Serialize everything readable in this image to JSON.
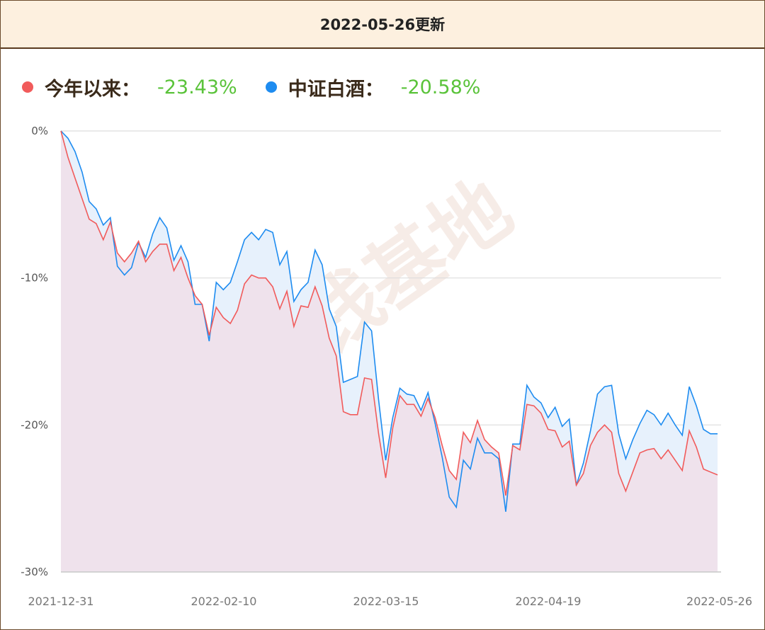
{
  "header": {
    "title": "2022-05-26更新"
  },
  "legend": [
    {
      "label": "今年以来：",
      "value": "-23.43%",
      "color": "#f15b5b"
    },
    {
      "label": "中证白酒：",
      "value": "-20.58%",
      "color": "#1e8cf0"
    }
  ],
  "watermark": "搞钱基地",
  "colors": {
    "value_text": "#5ac33a",
    "grid": "#dddddd",
    "area_red": "#efe2ec",
    "area_blue": "#e7f1fc"
  },
  "chart_data": {
    "type": "line",
    "ylim": [
      -30,
      0
    ],
    "y_ticks": [
      "0%",
      "-10%",
      "-20%",
      "-30%"
    ],
    "x_tick_labels": [
      "2021-12-31",
      "2022-02-10",
      "2022-03-15",
      "2022-04-19",
      "2022-05-26"
    ],
    "series": [
      {
        "name": "今年以来：",
        "color": "#f15b5b",
        "values": [
          0,
          -1.8,
          -3.2,
          -4.6,
          -6.0,
          -6.3,
          -7.4,
          -6.2,
          -8.3,
          -8.9,
          -8.3,
          -7.5,
          -8.9,
          -8.2,
          -7.7,
          -7.7,
          -9.5,
          -8.6,
          -10.0,
          -11.2,
          -11.8,
          -13.9,
          -12.0,
          -12.7,
          -13.1,
          -12.2,
          -10.4,
          -9.8,
          -10.0,
          -10.0,
          -10.6,
          -12.1,
          -10.9,
          -13.3,
          -11.9,
          -12.0,
          -10.6,
          -11.9,
          -14.1,
          -15.3,
          -19.1,
          -19.3,
          -19.3,
          -16.8,
          -16.9,
          -20.6,
          -23.6,
          -20.2,
          -18.0,
          -18.6,
          -18.6,
          -19.4,
          -18.2,
          -19.5,
          -21.4,
          -23.1,
          -23.7,
          -20.5,
          -21.2,
          -19.7,
          -21.0,
          -21.5,
          -21.9,
          -24.8,
          -21.4,
          -21.7,
          -18.6,
          -18.7,
          -19.2,
          -20.3,
          -20.4,
          -21.5,
          -21.1,
          -24.1,
          -23.3,
          -21.4,
          -20.5,
          -20.0,
          -20.5,
          -23.3,
          -24.5,
          -23.2,
          -21.9,
          -21.7,
          -21.6,
          -22.3,
          -21.7,
          -22.4,
          -23.1,
          -20.4,
          -21.5,
          -23.0,
          -23.2,
          -23.4
        ]
      },
      {
        "name": "中证白酒：",
        "color": "#1e8cf0",
        "values": [
          0,
          -0.5,
          -1.4,
          -2.8,
          -4.8,
          -5.3,
          -6.4,
          -5.9,
          -9.2,
          -9.8,
          -9.3,
          -7.6,
          -8.6,
          -7.0,
          -5.9,
          -6.6,
          -8.8,
          -7.8,
          -8.9,
          -11.8,
          -11.8,
          -14.3,
          -10.3,
          -10.8,
          -10.3,
          -8.9,
          -7.4,
          -6.9,
          -7.4,
          -6.7,
          -6.9,
          -9.1,
          -8.2,
          -11.6,
          -10.8,
          -10.3,
          -8.1,
          -9.1,
          -12.1,
          -13.3,
          -17.1,
          -16.9,
          -16.7,
          -13.0,
          -13.6,
          -18.3,
          -22.4,
          -19.5,
          -17.5,
          -17.9,
          -18.0,
          -19.0,
          -17.8,
          -19.9,
          -22.2,
          -24.9,
          -25.6,
          -22.4,
          -23.0,
          -20.9,
          -21.9,
          -21.9,
          -22.3,
          -25.9,
          -21.3,
          -21.3,
          -17.3,
          -18.1,
          -18.5,
          -19.5,
          -18.8,
          -20.1,
          -19.6,
          -24.1,
          -22.6,
          -20.4,
          -17.9,
          -17.4,
          -17.3,
          -20.6,
          -22.3,
          -21.0,
          -19.9,
          -19.0,
          -19.3,
          -20.0,
          -19.2,
          -20.0,
          -20.7,
          -17.4,
          -18.7,
          -20.3,
          -20.6,
          -20.6
        ]
      }
    ]
  }
}
